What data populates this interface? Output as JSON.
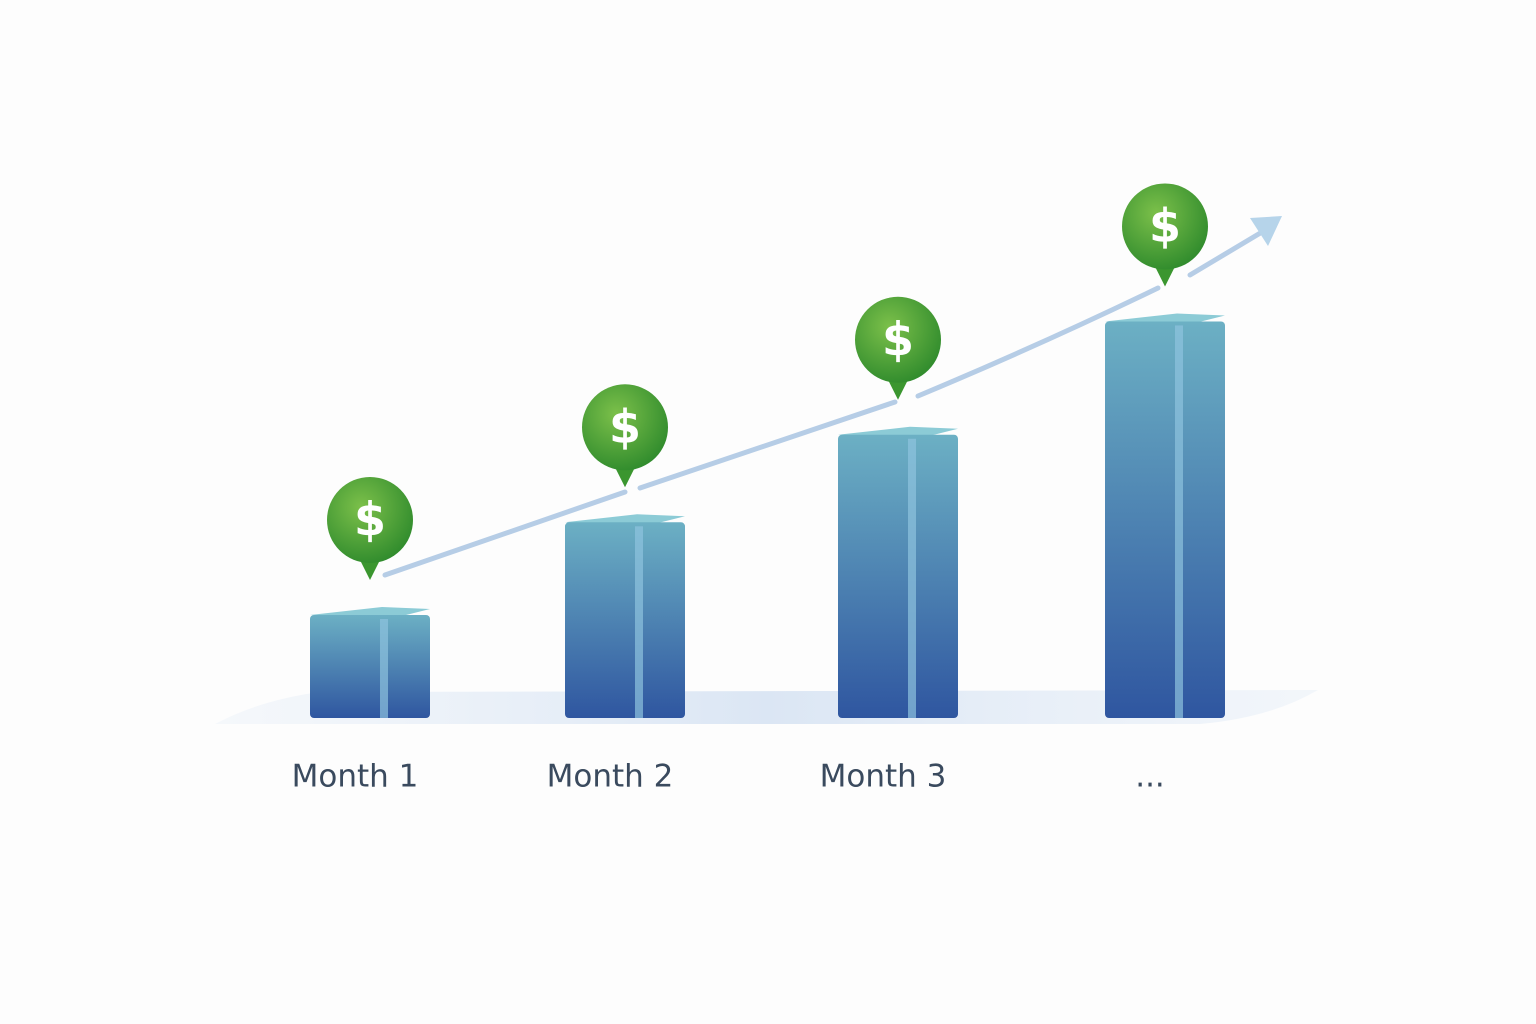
{
  "chart_data": {
    "type": "bar",
    "categories": [
      "Month 1",
      "Month 2",
      "Month 3",
      "..."
    ],
    "values": [
      1.0,
      1.9,
      2.75,
      3.85
    ],
    "color": "#2f56a0",
    "marker_label": "$"
  }
}
